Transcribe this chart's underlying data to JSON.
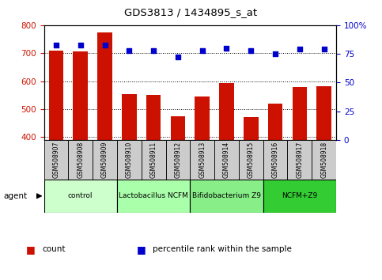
{
  "title": "GDS3813 / 1434895_s_at",
  "samples": [
    "GSM508907",
    "GSM508908",
    "GSM508909",
    "GSM508910",
    "GSM508911",
    "GSM508912",
    "GSM508913",
    "GSM508914",
    "GSM508915",
    "GSM508916",
    "GSM508917",
    "GSM508918"
  ],
  "counts": [
    710,
    705,
    775,
    553,
    551,
    476,
    545,
    592,
    472,
    520,
    578,
    583
  ],
  "percentile": [
    83,
    83,
    83,
    78,
    78,
    72,
    78,
    80,
    78,
    75,
    79,
    79
  ],
  "ylim_left": [
    390,
    800
  ],
  "ylim_right": [
    0,
    100
  ],
  "yticks_left": [
    400,
    500,
    600,
    700,
    800
  ],
  "yticks_right": [
    0,
    25,
    50,
    75,
    100
  ],
  "bar_color": "#cc1100",
  "dot_color": "#0000cc",
  "grid_color": "black",
  "bg_color": "#ffffff",
  "groups": [
    {
      "label": "control",
      "start": 0,
      "end": 3,
      "color": "#ccffcc"
    },
    {
      "label": "Lactobacillus NCFM",
      "start": 3,
      "end": 6,
      "color": "#aaffaa"
    },
    {
      "label": "Bifidobacterium Z9",
      "start": 6,
      "end": 9,
      "color": "#88ee88"
    },
    {
      "label": "NCFM+Z9",
      "start": 9,
      "end": 12,
      "color": "#33cc33"
    }
  ],
  "xlabel_color": "#cc1100",
  "ylabel_right_color": "#0000cc",
  "legend_count_color": "#cc1100",
  "legend_pct_color": "#0000cc",
  "agent_label": "agent",
  "bar_width": 0.6,
  "sample_box_color": "#cccccc",
  "fig_width": 4.83,
  "fig_height": 3.54,
  "dpi": 100
}
